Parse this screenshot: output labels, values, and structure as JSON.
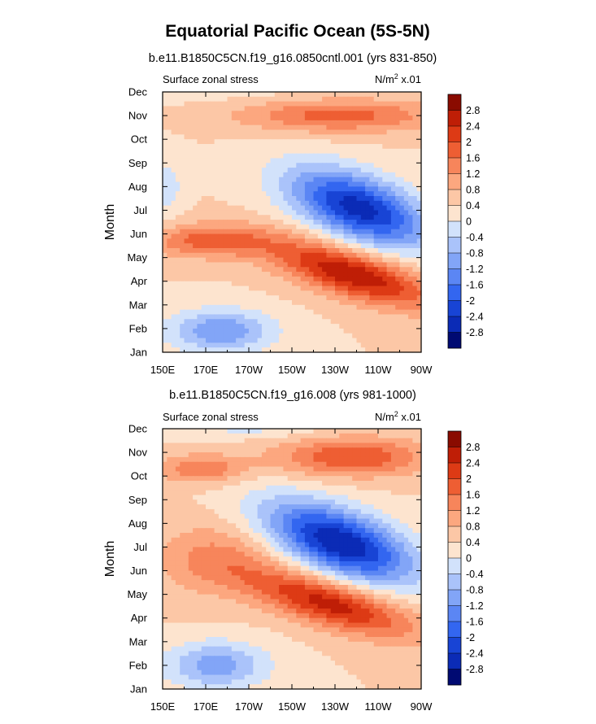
{
  "figure": {
    "title": "Equatorial Pacific Ocean (5S-5N)"
  },
  "chart_data": [
    {
      "type": "heatmap",
      "title": "b.e11.B1850C5CN.f19_g16.0850cntl.001 (yrs 831-850)",
      "left_label": "Surface zonal stress",
      "right_label": "N/m",
      "right_label_sup": "2",
      "right_label_suffix": " x.01",
      "xlabel": "",
      "ylabel": "Month",
      "x_ticks": [
        "150E",
        "170E",
        "170W",
        "150W",
        "130W",
        "110W",
        "90W"
      ],
      "x_values_deg_east": [
        150,
        170,
        190,
        210,
        230,
        250,
        270
      ],
      "xlim": [
        150,
        270
      ],
      "y_ticks": [
        "Jan",
        "Feb",
        "Mar",
        "Apr",
        "May",
        "Jun",
        "Jul",
        "Aug",
        "Sep",
        "Oct",
        "Nov",
        "Dec"
      ],
      "ylim": [
        1,
        12
      ],
      "features": [
        {
          "type": "min",
          "lon": 241,
          "month": 7.1,
          "value": -3.0,
          "lon_scale": 32,
          "month_scale": 1.4,
          "tilt": 0.55
        },
        {
          "type": "max",
          "lon": 238,
          "month": 4.3,
          "value": 2.4,
          "lon_scale": 38,
          "month_scale": 1.0,
          "tilt": 0.5
        },
        {
          "type": "max",
          "lon": 172,
          "month": 5.7,
          "value": 1.4,
          "lon_scale": 28,
          "month_scale": 0.7,
          "tilt": 0.0
        },
        {
          "type": "max",
          "lon": 232,
          "month": 11.0,
          "value": 1.4,
          "lon_scale": 45,
          "month_scale": 0.7,
          "tilt": 0.0
        },
        {
          "type": "min",
          "lon": 177,
          "month": 1.9,
          "value": -1.6,
          "lon_scale": 24,
          "month_scale": 0.9,
          "tilt": 0.0
        },
        {
          "type": "min",
          "lon": 152,
          "month": 8.0,
          "value": -0.6,
          "lon_scale": 8,
          "month_scale": 1.3,
          "tilt": 0.0
        },
        {
          "type": "max",
          "lon": 180,
          "month": 12.0,
          "value": -0.2,
          "lon_scale": 70,
          "month_scale": 0.5,
          "tilt": 0.0
        }
      ]
    },
    {
      "type": "heatmap",
      "title": "b.e11.B1850C5CN.f19_g16.008 (yrs 981-1000)",
      "left_label": "Surface zonal stress",
      "right_label": "N/m",
      "right_label_sup": "2",
      "right_label_suffix": " x.01",
      "xlabel": "",
      "ylabel": "Month",
      "x_ticks": [
        "150E",
        "170E",
        "170W",
        "150W",
        "130W",
        "110W",
        "90W"
      ],
      "x_values_deg_east": [
        150,
        170,
        190,
        210,
        230,
        250,
        270
      ],
      "xlim": [
        150,
        270
      ],
      "y_ticks": [
        "Jan",
        "Feb",
        "Mar",
        "Apr",
        "May",
        "Jun",
        "Jul",
        "Aug",
        "Sep",
        "Oct",
        "Nov",
        "Dec"
      ],
      "ylim": [
        1,
        12
      ],
      "features": [
        {
          "type": "min",
          "lon": 232,
          "month": 7.2,
          "value": -3.2,
          "lon_scale": 34,
          "month_scale": 1.4,
          "tilt": 0.55
        },
        {
          "type": "max",
          "lon": 228,
          "month": 4.6,
          "value": 2.2,
          "lon_scale": 38,
          "month_scale": 1.0,
          "tilt": 0.5
        },
        {
          "type": "max",
          "lon": 168,
          "month": 10.3,
          "value": 1.2,
          "lon_scale": 20,
          "month_scale": 0.6,
          "tilt": 0.0
        },
        {
          "type": "max",
          "lon": 238,
          "month": 10.8,
          "value": 1.6,
          "lon_scale": 35,
          "month_scale": 0.8,
          "tilt": 0.0
        },
        {
          "type": "min",
          "lon": 175,
          "month": 2.0,
          "value": -1.4,
          "lon_scale": 24,
          "month_scale": 1.0,
          "tilt": 0.0
        },
        {
          "type": "max",
          "lon": 175,
          "month": 6.5,
          "value": 0.9,
          "lon_scale": 28,
          "month_scale": 1.5,
          "tilt": 0.0
        },
        {
          "type": "min",
          "lon": 190,
          "month": 12.0,
          "value": -0.5,
          "lon_scale": 30,
          "month_scale": 0.4,
          "tilt": 0.0
        }
      ]
    }
  ],
  "colorbar": {
    "labels": [
      "2.8",
      "2.4",
      "2",
      "1.6",
      "1.2",
      "0.8",
      "0.4",
      "0",
      "-0.4",
      "-0.8",
      "-1.2",
      "-1.6",
      "-2",
      "-2.4",
      "-2.8"
    ],
    "levels": [
      -2.8,
      -2.4,
      -2.0,
      -1.6,
      -1.2,
      -0.8,
      -0.4,
      0,
      0.4,
      0.8,
      1.2,
      1.6,
      2.0,
      2.4,
      2.8
    ],
    "colors": [
      "#000a72",
      "#0b2bb6",
      "#1844d5",
      "#3366f0",
      "#5b86f4",
      "#82a5f7",
      "#aac3fa",
      "#d2e2fb",
      "#fde4cf",
      "#fcc7a6",
      "#fca77f",
      "#f7855b",
      "#ee5e33",
      "#dd3a15",
      "#bf1e06",
      "#8a0b00"
    ]
  }
}
